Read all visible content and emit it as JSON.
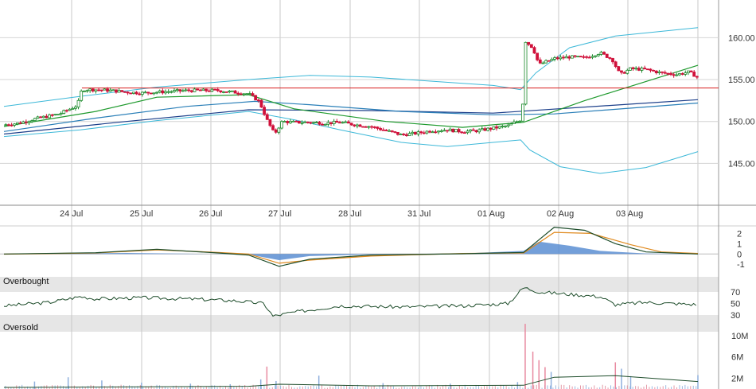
{
  "chart_data": [
    {
      "panel": "price",
      "type": "candlestick",
      "x_labels": [
        "24 Jul",
        "25 Jul",
        "26 Jul",
        "27 Jul",
        "28 Jul",
        "31 Jul",
        "01 Aug",
        "02 Aug",
        "03 Aug"
      ],
      "y_ticks": [
        "160.00",
        "155.00",
        "150.00",
        "145.00"
      ],
      "ylim": [
        140,
        164.5
      ],
      "reference_line": 154,
      "close_path": [
        [
          0,
          149.6
        ],
        [
          0.5,
          149.8
        ],
        [
          1,
          150.3
        ],
        [
          1.4,
          150.6
        ],
        [
          1.8,
          150.9
        ],
        [
          2.1,
          151.4
        ],
        [
          2.4,
          151.9
        ],
        [
          2.55,
          153.8
        ],
        [
          3,
          153.8
        ],
        [
          3.5,
          153.7
        ],
        [
          4,
          153.5
        ],
        [
          4.5,
          153.4
        ],
        [
          5,
          153.5
        ],
        [
          5.5,
          153.6
        ],
        [
          6,
          153.7
        ],
        [
          6.5,
          153.7
        ],
        [
          7,
          153.7
        ],
        [
          7.5,
          153.5
        ],
        [
          8,
          153.3
        ],
        [
          8.35,
          152.4
        ],
        [
          8.6,
          150.2
        ],
        [
          8.85,
          148.5
        ],
        [
          9.1,
          150.0
        ],
        [
          9.5,
          149.9
        ],
        [
          10,
          149.9
        ],
        [
          10.5,
          149.8
        ],
        [
          11,
          149.9
        ],
        [
          11.5,
          149.6
        ],
        [
          12,
          149.4
        ],
        [
          12.5,
          148.9
        ],
        [
          13,
          148.4
        ],
        [
          13.5,
          148.6
        ],
        [
          14,
          148.9
        ],
        [
          14.5,
          149.0
        ],
        [
          15,
          148.8
        ],
        [
          15.5,
          148.9
        ],
        [
          16,
          149.2
        ],
        [
          16.5,
          149.5
        ],
        [
          16.95,
          150.3
        ],
        [
          17.05,
          159.6
        ],
        [
          17.3,
          158.8
        ],
        [
          17.5,
          156.8
        ],
        [
          18,
          157.5
        ],
        [
          18.5,
          157.7
        ],
        [
          19,
          157.6
        ],
        [
          19.5,
          158.2
        ],
        [
          19.9,
          157.4
        ],
        [
          20.15,
          155.6
        ],
        [
          20.5,
          156.3
        ],
        [
          21,
          156.2
        ],
        [
          21.5,
          155.8
        ],
        [
          22,
          155.6
        ],
        [
          22.4,
          155.9
        ],
        [
          22.7,
          155.3
        ]
      ],
      "ma_fast": [
        [
          0,
          149.4
        ],
        [
          3,
          151.2
        ],
        [
          5,
          152.9
        ],
        [
          8,
          153.2
        ],
        [
          9.5,
          151.5
        ],
        [
          12.5,
          150.0
        ],
        [
          15,
          149.3
        ],
        [
          17,
          149.9
        ],
        [
          19,
          152.5
        ],
        [
          22.7,
          156.7
        ]
      ],
      "ma_slow": [
        [
          0,
          148.8
        ],
        [
          3,
          150.4
        ],
        [
          6,
          151.8
        ],
        [
          8.2,
          152.4
        ],
        [
          10,
          152.0
        ],
        [
          13,
          151.2
        ],
        [
          16,
          150.8
        ],
        [
          18,
          150.9
        ],
        [
          22.7,
          152.2
        ]
      ],
      "ma_long": [
        [
          0,
          148.5
        ],
        [
          4,
          150.0
        ],
        [
          8,
          151.4
        ],
        [
          12,
          151.3
        ],
        [
          16,
          151.0
        ],
        [
          22.7,
          152.6
        ]
      ],
      "bollinger_upper": [
        [
          0,
          151.8
        ],
        [
          2.5,
          153.0
        ],
        [
          5,
          154.1
        ],
        [
          8,
          155.0
        ],
        [
          10,
          155.5
        ],
        [
          12,
          155.3
        ],
        [
          14,
          154.8
        ],
        [
          16,
          154.3
        ],
        [
          16.9,
          153.8
        ],
        [
          17.4,
          155.8
        ],
        [
          18.5,
          158.8
        ],
        [
          20,
          160.2
        ],
        [
          22.7,
          161.2
        ]
      ],
      "bollinger_lower": [
        [
          0,
          148.2
        ],
        [
          2.5,
          149.0
        ],
        [
          5,
          150.1
        ],
        [
          8,
          151.2
        ],
        [
          9.5,
          150.2
        ],
        [
          11,
          149.0
        ],
        [
          13,
          147.5
        ],
        [
          14.5,
          147.0
        ],
        [
          16.9,
          147.8
        ],
        [
          17.2,
          146.6
        ],
        [
          18.2,
          144.6
        ],
        [
          19.5,
          143.8
        ],
        [
          21,
          144.5
        ],
        [
          22.7,
          146.4
        ]
      ]
    },
    {
      "panel": "macd",
      "type": "line",
      "y_ticks": [
        "2",
        "1",
        "0",
        "-1"
      ],
      "ylim": [
        -1.6,
        2.8
      ],
      "histogram": [
        [
          0,
          0
        ],
        [
          2,
          0.05
        ],
        [
          4,
          0.1
        ],
        [
          6,
          0.03
        ],
        [
          8,
          -0.05
        ],
        [
          9,
          -0.6
        ],
        [
          10,
          -0.2
        ],
        [
          12,
          -0.05
        ],
        [
          15,
          0.05
        ],
        [
          17,
          0.3
        ],
        [
          17.5,
          1.2
        ],
        [
          18.5,
          0.8
        ],
        [
          19.5,
          0.3
        ],
        [
          21,
          0.05
        ],
        [
          22.7,
          0
        ]
      ],
      "signal": [
        [
          0,
          -0.02
        ],
        [
          3,
          0.1
        ],
        [
          5,
          0.4
        ],
        [
          7,
          0.15
        ],
        [
          8,
          0
        ],
        [
          9,
          -0.9
        ],
        [
          10,
          -0.6
        ],
        [
          12,
          -0.2
        ],
        [
          15,
          0.05
        ],
        [
          17,
          0.1
        ],
        [
          18,
          2.1
        ],
        [
          19.2,
          2.0
        ],
        [
          20.5,
          0.9
        ],
        [
          21.5,
          0.2
        ],
        [
          22.7,
          0.05
        ]
      ],
      "macd": [
        [
          0,
          0
        ],
        [
          3,
          0.12
        ],
        [
          5,
          0.45
        ],
        [
          7,
          0.1
        ],
        [
          8,
          -0.1
        ],
        [
          9,
          -1.2
        ],
        [
          10,
          -0.5
        ],
        [
          12,
          -0.1
        ],
        [
          15,
          0.02
        ],
        [
          17,
          0.15
        ],
        [
          18,
          2.6
        ],
        [
          19,
          2.3
        ],
        [
          20,
          1.0
        ],
        [
          21,
          0.2
        ],
        [
          22.7,
          0
        ]
      ]
    },
    {
      "panel": "rsi",
      "type": "line",
      "y_ticks": [
        "70",
        "50",
        "30"
      ],
      "ylim": [
        10,
        90
      ],
      "zone_labels": [
        "Overbought",
        "Oversold"
      ],
      "rsi": [
        [
          0,
          46
        ],
        [
          1.5,
          52
        ],
        [
          2.5,
          62
        ],
        [
          3,
          58
        ],
        [
          4.5,
          60
        ],
        [
          6,
          58
        ],
        [
          7.5,
          55
        ],
        [
          8.5,
          50
        ],
        [
          8.8,
          28
        ],
        [
          9.5,
          35
        ],
        [
          11,
          46
        ],
        [
          13,
          44
        ],
        [
          15,
          46
        ],
        [
          16.5,
          50
        ],
        [
          17,
          78
        ],
        [
          17.5,
          70
        ],
        [
          19.5,
          62
        ],
        [
          20,
          48
        ],
        [
          21,
          52
        ],
        [
          22.7,
          48
        ]
      ]
    },
    {
      "panel": "volume",
      "type": "bar",
      "y_ticks": [
        "10M",
        "6M",
        "2M"
      ],
      "ylim": [
        0,
        14
      ],
      "spikes_millions": [
        [
          1,
          1.4
        ],
        [
          2.1,
          2.2
        ],
        [
          3.2,
          1.6
        ],
        [
          4.5,
          1.2
        ],
        [
          6.1,
          1.0
        ],
        [
          7.4,
          0.9
        ],
        [
          8.4,
          1.8
        ],
        [
          8.6,
          4.2
        ],
        [
          8.9,
          1.5
        ],
        [
          10.3,
          2.5
        ],
        [
          12.4,
          1.1
        ],
        [
          14.6,
          1.0
        ],
        [
          16.8,
          1.3
        ],
        [
          17.05,
          12.2
        ],
        [
          17.3,
          7.0
        ],
        [
          17.5,
          5.4
        ],
        [
          17.7,
          4.1
        ],
        [
          17.9,
          3.2
        ],
        [
          20.0,
          5.0
        ],
        [
          20.2,
          3.8
        ],
        [
          20.5,
          2.4
        ],
        [
          22.7,
          2.6
        ]
      ],
      "volume_ma": [
        [
          0,
          0.3
        ],
        [
          8,
          0.5
        ],
        [
          9,
          0.9
        ],
        [
          12,
          0.6
        ],
        [
          17,
          0.7
        ],
        [
          18,
          2.2
        ],
        [
          20,
          2.5
        ],
        [
          22.7,
          1.4
        ]
      ]
    }
  ]
}
